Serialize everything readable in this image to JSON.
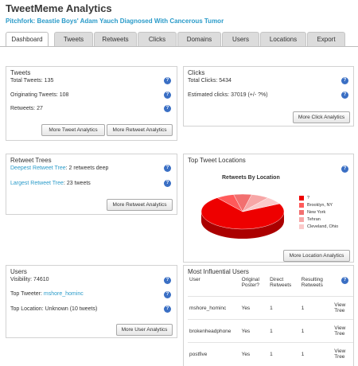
{
  "app": {
    "title": "TweetMeme Analytics",
    "article_link": "Pitchfork: Beastie Boys' Adam Yauch Diagnosed With Cancerous Tumor"
  },
  "tabs": [
    {
      "label": "Dashboard",
      "active": true
    },
    {
      "label": "Tweets"
    },
    {
      "label": "Retweets"
    },
    {
      "label": "Clicks"
    },
    {
      "label": "Domains"
    },
    {
      "label": "Users"
    },
    {
      "label": "Locations"
    },
    {
      "label": "Export"
    }
  ],
  "tweets_panel": {
    "title": "Tweets",
    "total_tweets": "Total Tweets: 135",
    "originating_tweets": "Originating Tweets: 108",
    "retweets": "Retweets: 27",
    "btn_tweet": "More Tweet Analytics",
    "btn_retweet": "More Retweet Analytics"
  },
  "clicks_panel": {
    "title": "Clicks",
    "total_clicks": "Total Clicks: 5434",
    "estimated_clicks": "Estimated clicks: 37019 (+/- ?%)",
    "btn": "More Click Analytics"
  },
  "retweet_trees": {
    "title": "Retweet Trees",
    "deepest_label": "Deepest Retweet Tree",
    "deepest_value": ": 2 retweets deep",
    "largest_label": "Largest Retweet Tree",
    "largest_value": ": 23 tweets",
    "btn": "More Retweet Analytics"
  },
  "locations": {
    "title": "Top Tweet Locations",
    "btn": "More Location Analytics",
    "help": "?"
  },
  "chart_data": {
    "type": "pie",
    "title": "Retweets By Location",
    "categories": [
      "?",
      "Brooklyn, NY",
      "New York",
      "Tehran",
      "Cleveland, Ohio"
    ],
    "values": [
      72,
      7,
      7,
      7,
      7
    ],
    "colors": [
      "#ee0000",
      "#ff5a5a",
      "#f26f6f",
      "#f7a6a6",
      "#fbcaca"
    ],
    "legend": "right"
  },
  "users_panel": {
    "title": "Users",
    "visibility": "Visibility: 74610",
    "top_tweeter_label": "Top Tweeter:",
    "top_tweeter_value": "mshore_hominc",
    "top_location": "Top Location: Unknown (10 tweets)",
    "btn": "More User Analytics"
  },
  "influential": {
    "title": "Most Influential Users",
    "headers": [
      "User",
      "Original Poster?",
      "Direct Retweets",
      "Resulting Retweets"
    ],
    "rows": [
      {
        "user": "mshore_hominc",
        "original": "Yes",
        "direct": "1",
        "resulting": "1",
        "action": "View Tree"
      },
      {
        "user": "brokenheadphone",
        "original": "Yes",
        "direct": "1",
        "resulting": "1",
        "action": "View Tree"
      },
      {
        "user": "postfive",
        "original": "Yes",
        "direct": "1",
        "resulting": "1",
        "action": "View Tree"
      }
    ]
  },
  "help_glyph": "?"
}
